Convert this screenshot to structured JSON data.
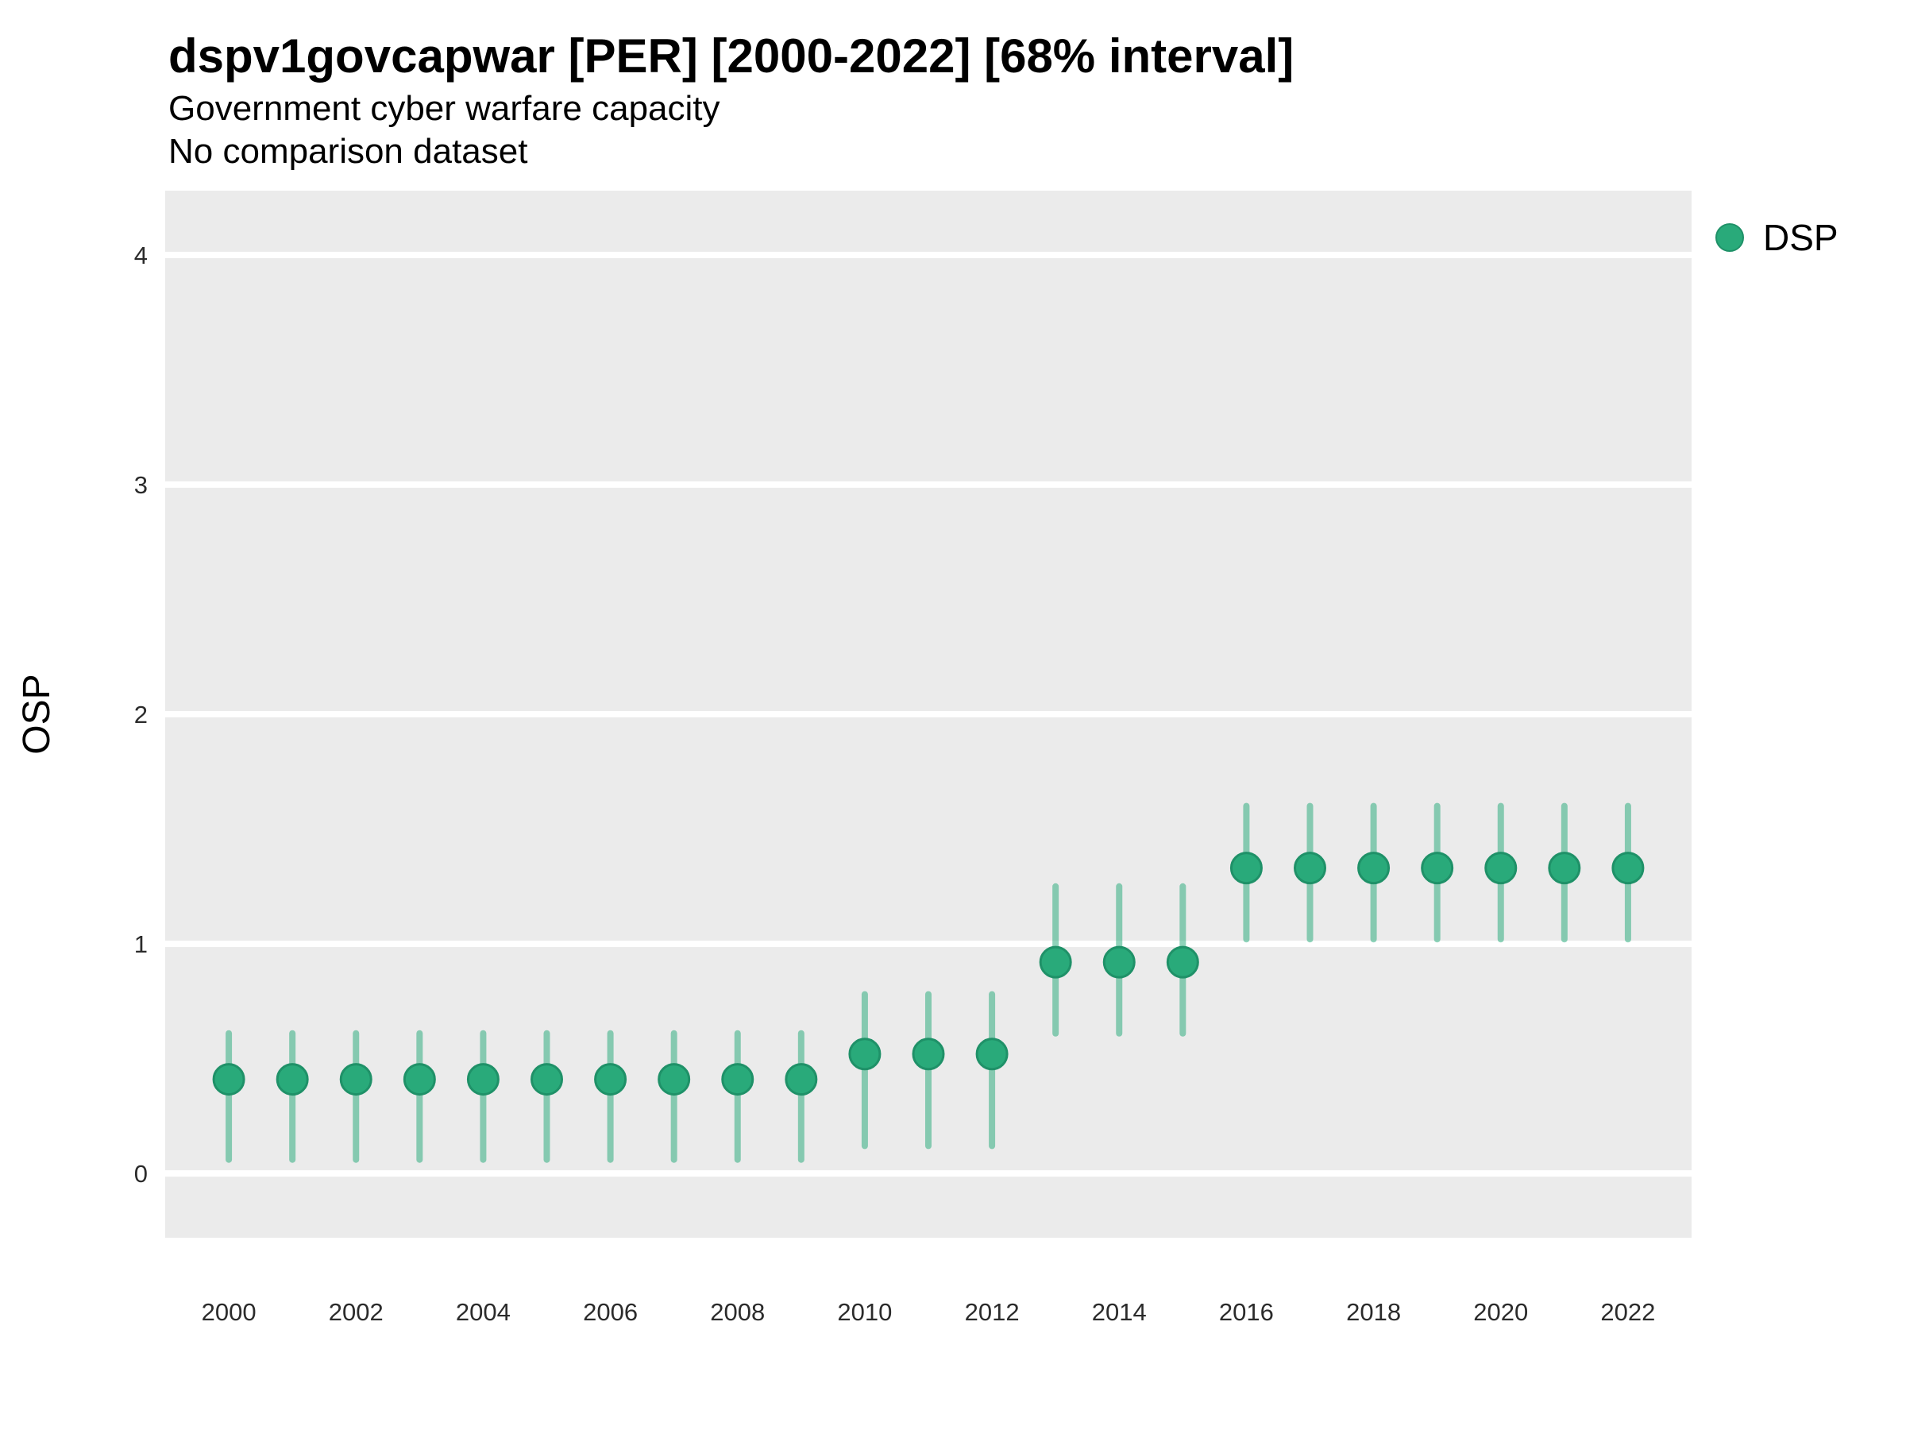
{
  "header": {
    "title": "dspv1govcapwar [PER] [2000-2022] [68% interval]",
    "subtitle1": "Government cyber warfare capacity",
    "subtitle2": "No comparison dataset"
  },
  "legend": {
    "label": "DSP",
    "marker": "circle-icon",
    "position": "right-top"
  },
  "colors": {
    "point_fill": "#29AA7A",
    "point_stroke": "#1F9168",
    "interval_bar": "rgba(41,170,122,0.52)",
    "panel_background": "#EBEBEB",
    "gridline": "#FFFFFF",
    "title_text": "#000000",
    "tick_text": "#2B2B2B"
  },
  "chart_data": {
    "type": "scatter",
    "title": "dspv1govcapwar [PER] [2000-2022] [68% interval]",
    "subtitle": [
      "Government cyber warfare capacity",
      "No comparison dataset"
    ],
    "xlabel": "",
    "ylabel": "OSP",
    "interval": "68%",
    "grid": "major-horizontal-only",
    "legend_position": "right-top",
    "xlim": [
      1999,
      2023
    ],
    "ylim": [
      -0.28,
      4.28
    ],
    "x_ticks": [
      2000,
      2002,
      2004,
      2006,
      2008,
      2010,
      2012,
      2014,
      2016,
      2018,
      2020,
      2022
    ],
    "y_ticks": [
      0,
      1,
      2,
      3,
      4
    ],
    "series": [
      {
        "name": "DSP",
        "points": [
          {
            "year": 2000,
            "value": 0.41,
            "lo": 0.06,
            "hi": 0.61
          },
          {
            "year": 2001,
            "value": 0.41,
            "lo": 0.06,
            "hi": 0.61
          },
          {
            "year": 2002,
            "value": 0.41,
            "lo": 0.06,
            "hi": 0.61
          },
          {
            "year": 2003,
            "value": 0.41,
            "lo": 0.06,
            "hi": 0.61
          },
          {
            "year": 2004,
            "value": 0.41,
            "lo": 0.06,
            "hi": 0.61
          },
          {
            "year": 2005,
            "value": 0.41,
            "lo": 0.06,
            "hi": 0.61
          },
          {
            "year": 2006,
            "value": 0.41,
            "lo": 0.06,
            "hi": 0.61
          },
          {
            "year": 2007,
            "value": 0.41,
            "lo": 0.06,
            "hi": 0.61
          },
          {
            "year": 2008,
            "value": 0.41,
            "lo": 0.06,
            "hi": 0.61
          },
          {
            "year": 2009,
            "value": 0.41,
            "lo": 0.06,
            "hi": 0.61
          },
          {
            "year": 2010,
            "value": 0.52,
            "lo": 0.12,
            "hi": 0.78
          },
          {
            "year": 2011,
            "value": 0.52,
            "lo": 0.12,
            "hi": 0.78
          },
          {
            "year": 2012,
            "value": 0.52,
            "lo": 0.12,
            "hi": 0.78
          },
          {
            "year": 2013,
            "value": 0.92,
            "lo": 0.61,
            "hi": 1.25
          },
          {
            "year": 2014,
            "value": 0.92,
            "lo": 0.61,
            "hi": 1.25
          },
          {
            "year": 2015,
            "value": 0.92,
            "lo": 0.61,
            "hi": 1.25
          },
          {
            "year": 2016,
            "value": 1.33,
            "lo": 1.02,
            "hi": 1.6
          },
          {
            "year": 2017,
            "value": 1.33,
            "lo": 1.02,
            "hi": 1.6
          },
          {
            "year": 2018,
            "value": 1.33,
            "lo": 1.02,
            "hi": 1.6
          },
          {
            "year": 2019,
            "value": 1.33,
            "lo": 1.02,
            "hi": 1.6
          },
          {
            "year": 2020,
            "value": 1.33,
            "lo": 1.02,
            "hi": 1.6
          },
          {
            "year": 2021,
            "value": 1.33,
            "lo": 1.02,
            "hi": 1.6
          },
          {
            "year": 2022,
            "value": 1.33,
            "lo": 1.02,
            "hi": 1.6
          }
        ]
      }
    ]
  }
}
